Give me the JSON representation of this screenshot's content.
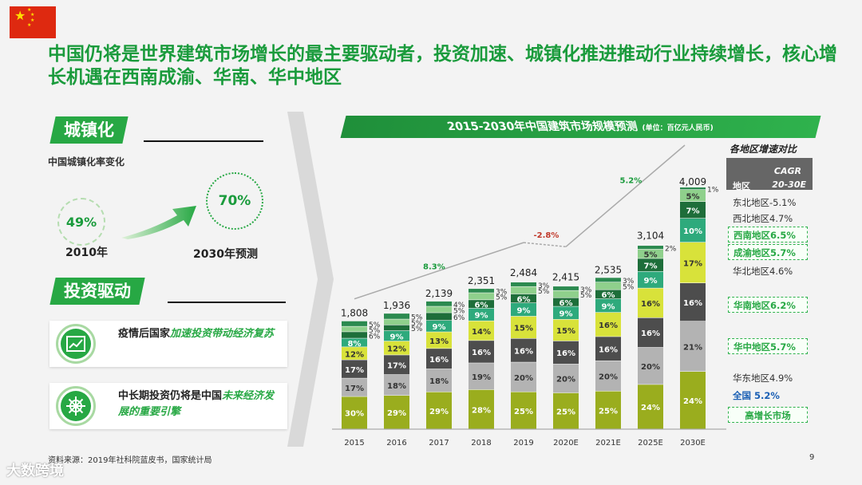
{
  "headline": "中国仍将是世界建筑市场增长的最主要驱动者，投资加速、城镇化推进推动行业持续增长，核心增长机遇在西南成渝、华南、华中地区",
  "colors": {
    "accent": "#27a844",
    "title": "#1a9b3c",
    "flag": "#de2910"
  },
  "urbanization": {
    "tag": "城镇化",
    "subtitle": "中国城镇化率变化",
    "from_value": "49%",
    "from_label": "2010年",
    "to_value": "70%",
    "to_label": "2030年预测"
  },
  "investment": {
    "tag": "投资驱动",
    "card1_plain": "疫情后国家",
    "card1_em": "加速投资带动经济复苏",
    "card1_icon": "growth-chart-icon",
    "card2_plain": "中长期投资仍将是中国",
    "card2_em": "未来经济发展的重要引擎",
    "card2_icon": "ship-wheel-icon"
  },
  "chart_data": {
    "type": "bar",
    "title": "2015-2030年中国建筑市场规模预测",
    "unit": "(单位：百亿元人民币)",
    "categories": [
      "2015",
      "2016",
      "2017",
      "2018",
      "2019",
      "2020E",
      "2021E",
      "2025E",
      "2030E"
    ],
    "totals": [
      1808,
      1936,
      2139,
      2351,
      2484,
      2415,
      2535,
      3104,
      4009
    ],
    "total_labels": [
      "1,808",
      "1,936",
      "2,139",
      "2,351",
      "2,484",
      "2,415",
      "2,535",
      "3,104",
      "4,009"
    ],
    "series": [
      {
        "name": "华东地区",
        "color": "#9aad1e",
        "values": [
          30,
          29,
          29,
          28,
          25,
          25,
          25,
          24,
          24
        ]
      },
      {
        "name": "华中地区",
        "color": "#b3b3b3",
        "values": [
          17,
          18,
          18,
          19,
          20,
          20,
          20,
          20,
          21
        ]
      },
      {
        "name": "华北地区",
        "color": "#4d4d4d",
        "values": [
          17,
          17,
          16,
          16,
          16,
          16,
          16,
          16,
          16
        ]
      },
      {
        "name": "华南地区",
        "color": "#d8e23a",
        "values": [
          12,
          12,
          13,
          14,
          15,
          15,
          16,
          16,
          17
        ]
      },
      {
        "name": "成渝地区",
        "color": "#2eaa7c",
        "values": [
          8,
          9,
          9,
          9,
          9,
          9,
          9,
          9,
          10
        ]
      },
      {
        "name": "西南地区",
        "color": "#1e6e3a",
        "values": [
          6,
          5,
          6,
          6,
          6,
          6,
          6,
          7,
          7
        ]
      },
      {
        "name": "西北地区",
        "color": "#8fd08c",
        "values": [
          5,
          5,
          5,
          5,
          5,
          5,
          5,
          5,
          5
        ]
      },
      {
        "name": "东北地区",
        "color": "#2b8a4f",
        "values": [
          5,
          5,
          4,
          3,
          3,
          3,
          3,
          2,
          1
        ]
      }
    ],
    "segment_labels": [
      [
        "30%",
        "17%",
        "17%",
        "12%",
        "8%",
        "6%",
        "5%",
        "5%"
      ],
      [
        "29%",
        "18%",
        "17%",
        "12%",
        "9%",
        "5%",
        "5%",
        "5%"
      ],
      [
        "29%",
        "18%",
        "16%",
        "13%",
        "9%",
        "6%",
        "5%",
        "4%"
      ],
      [
        "28%",
        "19%",
        "16%",
        "14%",
        "9%",
        "6%",
        "5%",
        "3%"
      ],
      [
        "25%",
        "20%",
        "16%",
        "15%",
        "9%",
        "6%",
        "5%",
        "3%"
      ],
      [
        "25%",
        "20%",
        "16%",
        "15%",
        "9%",
        "6%",
        "5%",
        "3%"
      ],
      [
        "25%",
        "20%",
        "16%",
        "16%",
        "9%",
        "6%",
        "5%",
        "3%"
      ],
      [
        "24%",
        "20%",
        "16%",
        "16%",
        "9%",
        "7%",
        "5%",
        "2%"
      ],
      [
        "24%",
        "21%",
        "16%",
        "17%",
        "10%",
        "7%",
        "5%",
        "1%"
      ]
    ],
    "growth_annotations": [
      "8.3%",
      "-2.8%",
      "5.2%"
    ]
  },
  "regional": {
    "title": "各地区增速对比",
    "col_region": "地区",
    "col_cagr": "CAGR",
    "col_period": "20-30E",
    "rows": [
      {
        "label": "东北地区-5.1%",
        "hl": false
      },
      {
        "label": "西北地区4.7%",
        "hl": false
      },
      {
        "label": "西南地区6.5%",
        "hl": true
      },
      {
        "label": "成渝地区5.7%",
        "hl": true
      },
      {
        "label": "华北地区4.6%",
        "hl": false
      },
      {
        "label": "华南地区6.2%",
        "hl": true
      },
      {
        "label": "华中地区5.7%",
        "hl": true
      },
      {
        "label": "华东地区4.9%",
        "hl": false
      },
      {
        "label": "全国     5.2%",
        "hl": false
      }
    ],
    "legend_note": "高增长市场"
  },
  "source": "资料来源：2019年社科院蓝皮书，国家统计局",
  "page_number": "9",
  "watermark": "大数跨境"
}
